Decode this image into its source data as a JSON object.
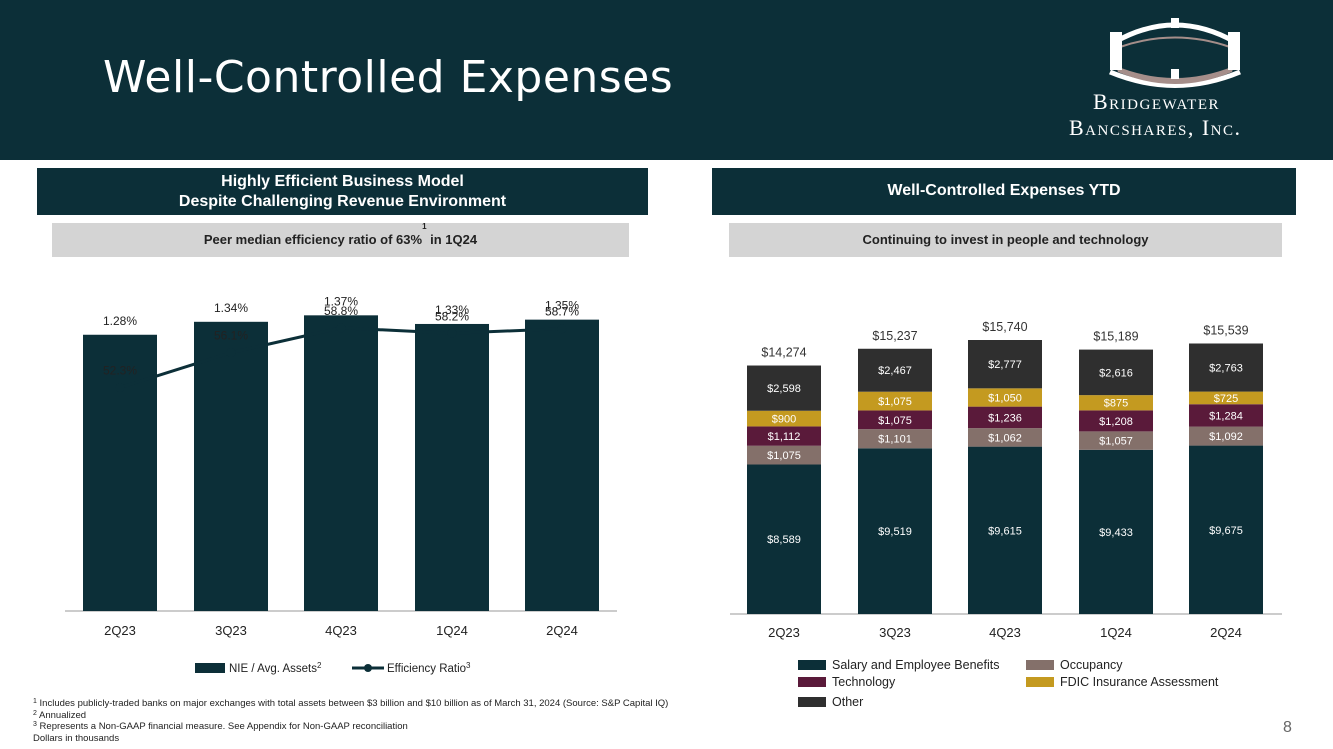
{
  "header": {
    "title": "Well-Controlled Expenses",
    "logo_line1": "Bridgewater",
    "logo_line2": "Bancshares, Inc."
  },
  "left": {
    "banner_line1": "Highly Efficient Business Model",
    "banner_line2": "Despite Challenging Revenue Environment",
    "subbar_pre": "Peer median efficiency ratio of 63%",
    "subbar_sup": "1",
    "subbar_post": " in 1Q24"
  },
  "right": {
    "banner": "Well-Controlled Expenses YTD",
    "subbar": "Continuing to invest in people and technology"
  },
  "chart_data": [
    {
      "type": "bar",
      "title": "Highly Efficient Business Model",
      "categories": [
        "2Q23",
        "3Q23",
        "4Q23",
        "1Q24",
        "2Q24"
      ],
      "series": [
        {
          "name": "NIE / Avg. Assets",
          "legend_sup": "2",
          "kind": "bar",
          "values": [
            1.28,
            1.34,
            1.37,
            1.33,
            1.35
          ],
          "labels": [
            "1.28%",
            "1.34%",
            "1.37%",
            "1.33%",
            "1.35%"
          ]
        },
        {
          "name": "Efficiency Ratio",
          "legend_sup": "3",
          "kind": "line",
          "values": [
            52.3,
            56.1,
            58.8,
            58.2,
            58.7
          ],
          "labels": [
            "52.3%",
            "56.1%",
            "58.8%",
            "58.2%",
            "58.7%"
          ]
        }
      ],
      "bar_ylim": [
        0,
        1.77
      ],
      "line_ylim": [
        28,
        69
      ],
      "colors": {
        "bar": "#0c2f38",
        "line": "#0c2f38"
      }
    },
    {
      "type": "bar",
      "stacked": true,
      "title": "Well-Controlled Expenses YTD",
      "categories": [
        "2Q23",
        "3Q23",
        "4Q23",
        "1Q24",
        "2Q24"
      ],
      "totals": [
        14274,
        15237,
        15740,
        15189,
        15539
      ],
      "total_labels": [
        "$14,274",
        "$15,237",
        "$15,740",
        "$15,189",
        "$15,539"
      ],
      "series": [
        {
          "name": "Salary and Employee Benefits",
          "color": "#0c2f38",
          "values": [
            8589,
            9519,
            9615,
            9433,
            9675
          ],
          "labels": [
            "$8,589",
            "$9,519",
            "$9,615",
            "$9,433",
            "$9,675"
          ]
        },
        {
          "name": "Occupancy",
          "color": "#84706a",
          "values": [
            1075,
            1101,
            1062,
            1057,
            1092
          ],
          "labels": [
            "$1,075",
            "$1,101",
            "$1,062",
            "$1,057",
            "$1,092"
          ]
        },
        {
          "name": "Technology",
          "color": "#5a1a3a",
          "values": [
            1112,
            1075,
            1236,
            1208,
            1284
          ],
          "labels": [
            "$1,112",
            "$1,075",
            "$1,236",
            "$1,208",
            "$1,284"
          ]
        },
        {
          "name": "FDIC Insurance Assessment",
          "color": "#c49a20",
          "values": [
            900,
            1075,
            1050,
            875,
            725
          ],
          "labels": [
            "$900",
            "$1,075",
            "$1,050",
            "$875",
            "$725"
          ]
        },
        {
          "name": "Other",
          "color": "#2f2f2f",
          "values": [
            2598,
            2467,
            2777,
            2616,
            2763
          ],
          "labels": [
            "$2,598",
            "$2,467",
            "$2,777",
            "$2,616",
            "$2,763"
          ]
        }
      ],
      "ylim": [
        0,
        17000
      ]
    }
  ],
  "footnotes": [
    {
      "sup": "1",
      "text": " Includes publicly-traded banks on major exchanges with total assets between $3 billion and $10 billion as of March 31, 2024 (Source: S&P Capital IQ)"
    },
    {
      "sup": "2",
      "text": " Annualized"
    },
    {
      "sup": "3",
      "text": " Represents a Non-GAAP financial measure. See Appendix for Non-GAAP reconciliation"
    },
    {
      "sup": "",
      "text": "Dollars in thousands"
    }
  ],
  "page_number": "8"
}
